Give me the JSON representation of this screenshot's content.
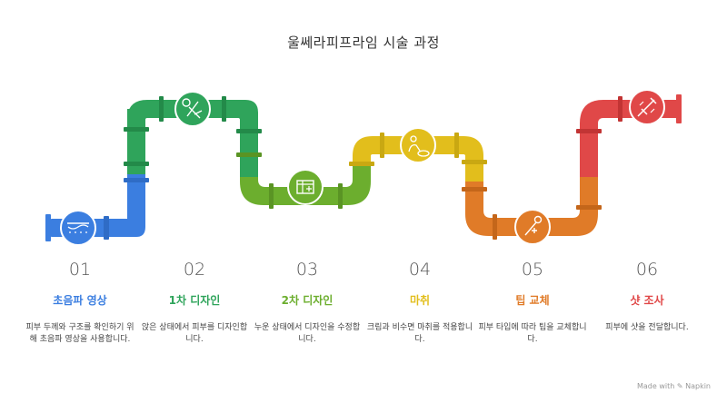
{
  "title": "울쎄라피프라임 시술 과정",
  "colors": {
    "step1": "#3b7ee0",
    "step2": "#2fa45b",
    "step3": "#6cae2e",
    "step4": "#e2be1c",
    "step5": "#e07b28",
    "step6": "#e04848"
  },
  "steps": [
    {
      "number": "01",
      "title": "초음파 영상",
      "description": "피부 두께와 구조를 확인하기 위해 초음파 영상을 사용합니다.",
      "icon": "ultrasound-wave-icon"
    },
    {
      "number": "02",
      "title": "1차 디자인",
      "description": "앉은 상태에서 피부를 디자인합니다.",
      "icon": "design-tools-icon"
    },
    {
      "number": "03",
      "title": "2차 디자인",
      "description": "누운 상태에서 디자인을 수정합니다.",
      "icon": "box-edit-icon"
    },
    {
      "number": "04",
      "title": "마취",
      "description": "크림과 비수면 마취를 적용합니다.",
      "icon": "cream-apply-icon"
    },
    {
      "number": "05",
      "title": "팁 교체",
      "description": "피부 타입에 따라 팁을 교체합니다.",
      "icon": "probe-tip-icon"
    },
    {
      "number": "06",
      "title": "샷 조사",
      "description": "피부에 샷을 전달합니다.",
      "icon": "injector-shot-icon"
    }
  ],
  "footer": "Made with ✎ Napkin"
}
